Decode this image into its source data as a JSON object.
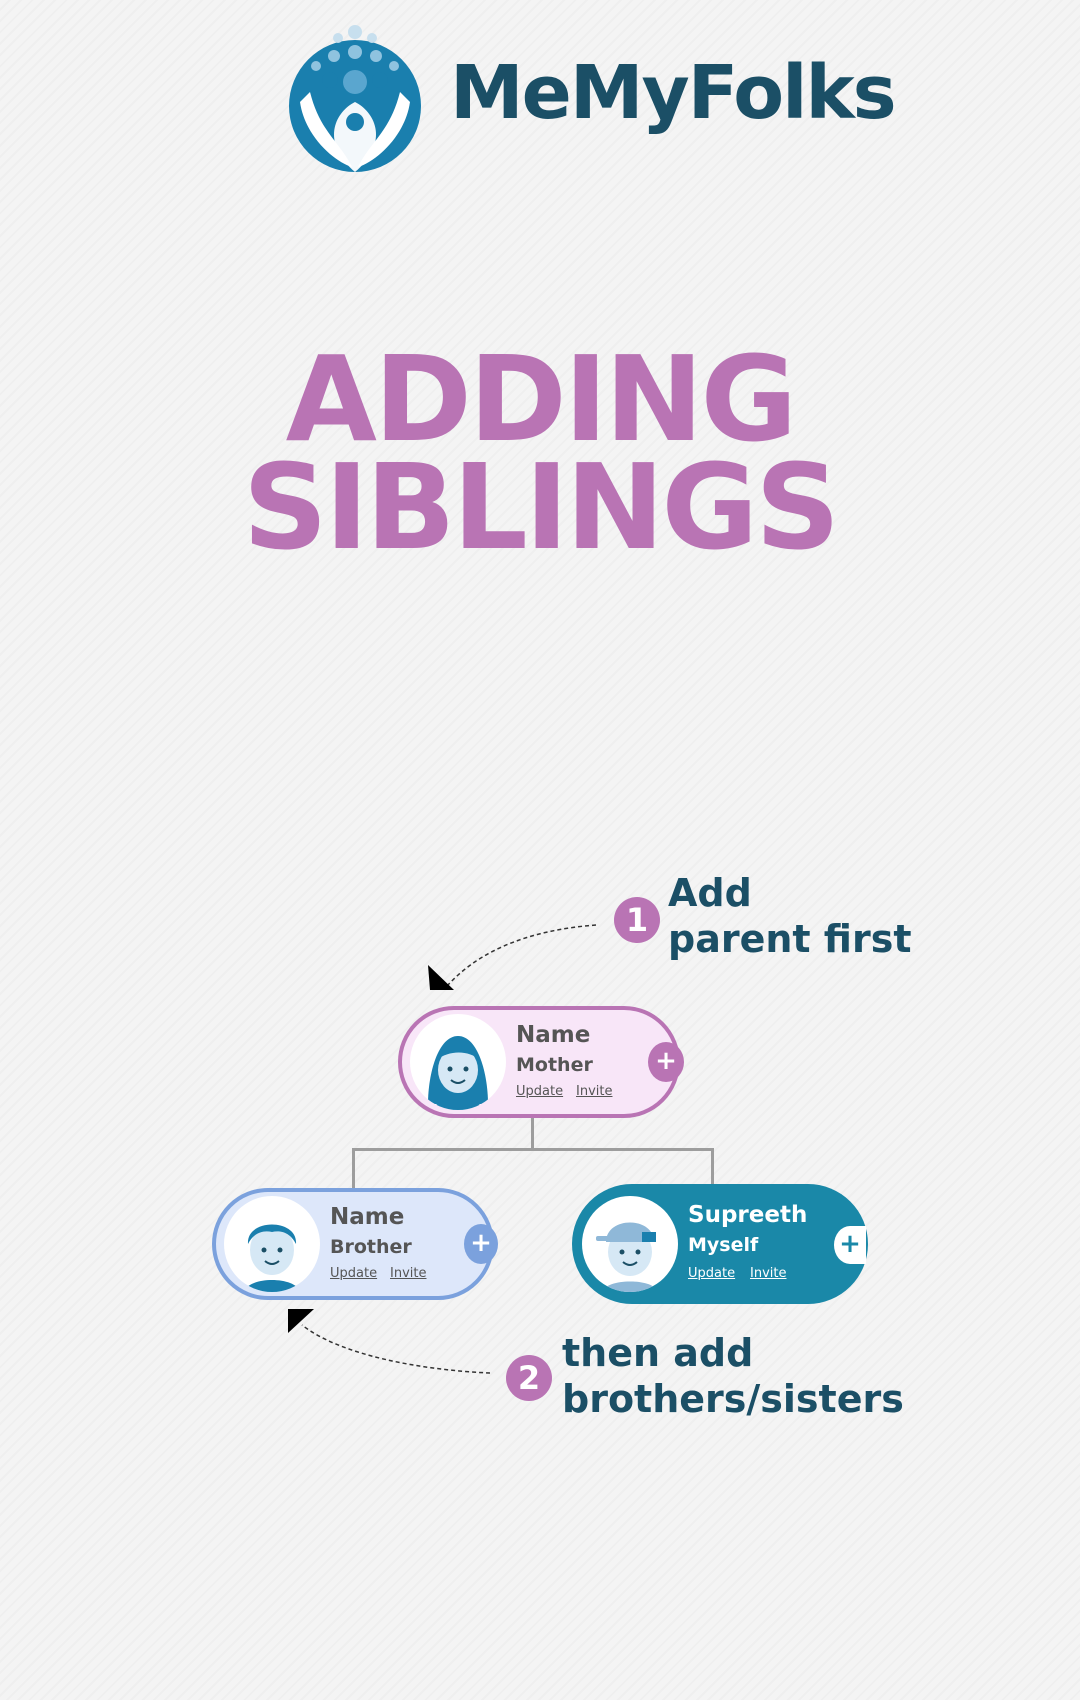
{
  "brand": {
    "name": "MeMyFolks",
    "logo_icon": "family-circle-logo-icon"
  },
  "title": {
    "line1": "ADDING",
    "line2": "SIBLINGS"
  },
  "steps": [
    {
      "number": "1",
      "line1": "Add",
      "line2": "parent first"
    },
    {
      "number": "2",
      "line1": "then add",
      "line2": "brothers/sisters"
    }
  ],
  "tree": {
    "parent": {
      "name": "Name",
      "relation": "Mother",
      "update": "Update",
      "invite": "Invite"
    },
    "sibling": {
      "name": "Name",
      "relation": "Brother",
      "update": "Update",
      "invite": "Invite"
    },
    "self": {
      "name": "Supreeth",
      "relation": "Myself",
      "update": "Update",
      "invite": "Invite"
    }
  },
  "colors": {
    "accent_purple": "#b974b4",
    "brand_teal": "#1b4f66",
    "self_card": "#1a88a8",
    "sibling_border": "#7ba1dd"
  }
}
